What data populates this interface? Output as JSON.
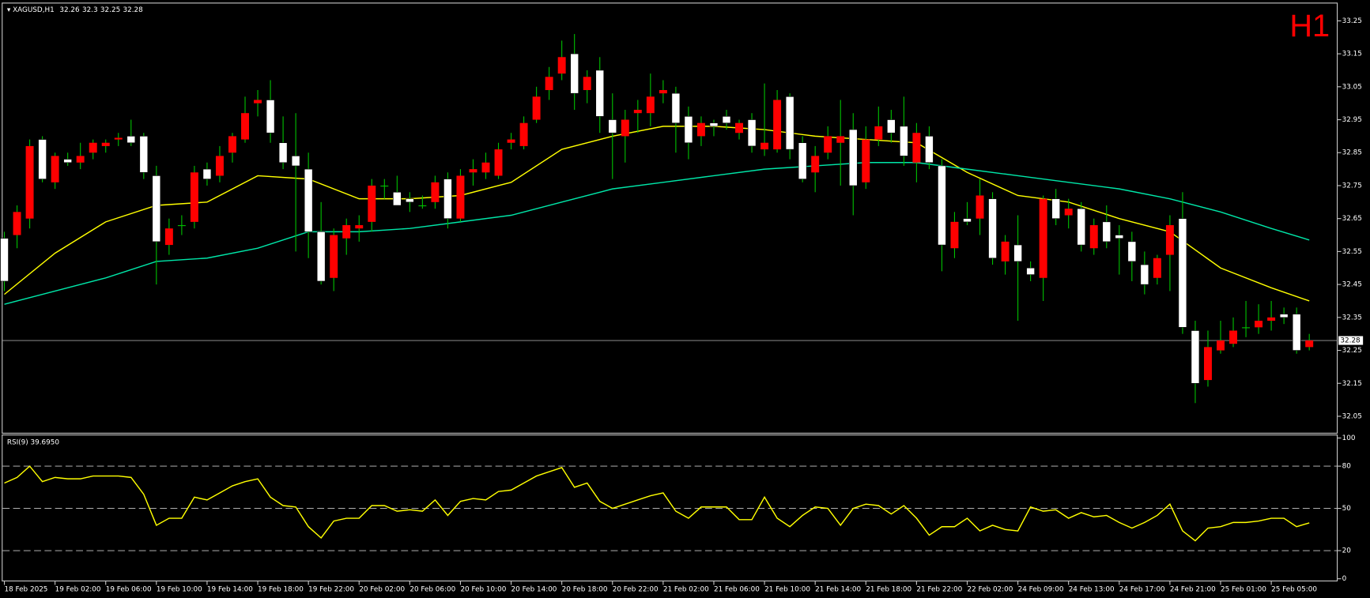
{
  "chart_data": [
    {
      "type": "candlestick",
      "symbol_label": "XAGUSD,H1",
      "timeframe": "H1",
      "rising_color": "#ff0000",
      "falling_color": "#ffffff",
      "wick_color": "#00c000",
      "bid_line_color": "#a0a0a0",
      "open": [
        32.59,
        32.6,
        32.65,
        32.89,
        32.76,
        32.83,
        32.82,
        32.85,
        32.87,
        32.89,
        32.9,
        32.9,
        32.78,
        32.57,
        32.63,
        32.64,
        32.8,
        32.78,
        32.85,
        32.89,
        33.0,
        33.01,
        32.88,
        32.84,
        32.8,
        32.61,
        32.47,
        32.59,
        32.62,
        32.64,
        32.75,
        32.73,
        32.71,
        32.69,
        32.7,
        32.77,
        32.65,
        32.79,
        32.79,
        32.78,
        32.88,
        32.87,
        32.95,
        33.04,
        33.09,
        33.15,
        33.04,
        33.1,
        32.95,
        32.9,
        32.97,
        32.97,
        33.03,
        33.03,
        32.96,
        32.9,
        32.94,
        32.96,
        32.91,
        32.95,
        32.86,
        32.86,
        33.02,
        32.88,
        32.79,
        32.85,
        32.88,
        32.92,
        32.76,
        32.89,
        32.95,
        32.93,
        32.82,
        32.9,
        32.81,
        32.56,
        32.65,
        32.65,
        32.71,
        32.52,
        32.57,
        32.5,
        32.47,
        32.71,
        32.66,
        32.68,
        32.56,
        32.64,
        32.6,
        32.58,
        32.51,
        32.47,
        32.54,
        32.65,
        32.31,
        32.16,
        32.25,
        32.27,
        32.32,
        32.32,
        32.34,
        32.36,
        32.36,
        32.26
      ],
      "high": [
        32.61,
        32.69,
        32.89,
        32.9,
        32.85,
        32.85,
        32.88,
        32.89,
        32.89,
        32.91,
        32.95,
        32.91,
        32.81,
        32.65,
        32.66,
        32.81,
        32.82,
        32.87,
        32.91,
        33.02,
        33.04,
        33.07,
        32.96,
        32.97,
        32.85,
        32.7,
        32.62,
        32.65,
        32.66,
        32.77,
        32.77,
        32.78,
        32.73,
        32.72,
        32.78,
        32.79,
        32.8,
        32.83,
        32.85,
        32.88,
        32.91,
        32.96,
        33.05,
        33.11,
        33.19,
        33.21,
        33.1,
        33.14,
        33.03,
        32.98,
        33.01,
        33.09,
        33.07,
        33.05,
        32.99,
        32.96,
        32.95,
        32.98,
        32.95,
        32.97,
        33.06,
        33.04,
        33.03,
        32.9,
        32.87,
        32.93,
        33.01,
        32.97,
        32.93,
        32.99,
        32.98,
        33.02,
        32.94,
        32.93,
        32.83,
        32.67,
        32.7,
        32.77,
        32.73,
        32.6,
        32.66,
        32.52,
        32.72,
        32.74,
        32.71,
        32.7,
        32.65,
        32.69,
        32.63,
        32.61,
        32.55,
        32.54,
        32.66,
        32.73,
        32.34,
        32.31,
        32.34,
        32.35,
        32.4,
        32.39,
        32.4,
        32.38,
        32.38,
        32.3
      ],
      "low": [
        32.43,
        32.56,
        32.62,
        32.76,
        32.74,
        32.81,
        32.8,
        32.83,
        32.85,
        32.87,
        32.87,
        32.77,
        32.45,
        32.54,
        32.6,
        32.62,
        32.75,
        32.76,
        32.82,
        32.88,
        32.96,
        32.88,
        32.8,
        32.55,
        32.53,
        32.45,
        32.43,
        32.54,
        32.58,
        32.61,
        32.71,
        32.69,
        32.67,
        32.68,
        32.68,
        32.62,
        32.64,
        32.75,
        32.77,
        32.77,
        32.86,
        32.86,
        32.94,
        33.01,
        33.07,
        32.98,
        33.0,
        32.91,
        32.77,
        32.82,
        32.91,
        32.93,
        33.0,
        32.85,
        32.83,
        32.87,
        32.9,
        32.92,
        32.89,
        32.85,
        32.84,
        32.85,
        32.83,
        32.76,
        32.73,
        32.83,
        32.75,
        32.66,
        32.74,
        32.87,
        32.88,
        32.81,
        32.76,
        32.8,
        32.49,
        32.53,
        32.63,
        32.6,
        32.51,
        32.48,
        32.34,
        32.46,
        32.4,
        32.63,
        32.62,
        32.55,
        32.54,
        32.56,
        32.48,
        32.46,
        32.42,
        32.45,
        32.43,
        32.3,
        32.09,
        32.14,
        32.24,
        32.26,
        32.29,
        32.3,
        32.31,
        32.33,
        32.24,
        32.25
      ],
      "close": [
        32.46,
        32.67,
        32.87,
        32.77,
        32.84,
        32.82,
        32.84,
        32.88,
        32.88,
        32.895,
        32.88,
        32.79,
        32.58,
        32.62,
        32.63,
        32.79,
        32.77,
        32.84,
        32.9,
        32.97,
        33.01,
        32.91,
        32.82,
        32.81,
        32.61,
        32.46,
        32.6,
        32.63,
        32.63,
        32.75,
        32.75,
        32.69,
        32.7,
        32.69,
        32.76,
        32.65,
        32.78,
        32.8,
        32.82,
        32.86,
        32.89,
        32.94,
        33.02,
        33.08,
        33.14,
        33.03,
        33.08,
        32.96,
        32.91,
        32.95,
        32.98,
        33.02,
        33.04,
        32.94,
        32.88,
        32.94,
        32.93,
        32.94,
        32.94,
        32.87,
        32.88,
        33.01,
        32.86,
        32.77,
        32.84,
        32.9,
        32.9,
        32.75,
        32.89,
        32.93,
        32.91,
        32.84,
        32.91,
        32.82,
        32.57,
        32.64,
        32.64,
        32.72,
        32.53,
        32.58,
        32.52,
        32.48,
        32.71,
        32.65,
        32.68,
        32.57,
        32.63,
        32.58,
        32.59,
        32.52,
        32.45,
        32.53,
        32.63,
        32.32,
        32.15,
        32.26,
        32.28,
        32.31,
        32.32,
        32.34,
        32.35,
        32.35,
        32.25,
        32.28
      ],
      "lines": [
        {
          "color": "#ffff00",
          "x": [
            0,
            4,
            8,
            12,
            16,
            20,
            24,
            28,
            32,
            36,
            40,
            44,
            48,
            52,
            56,
            60,
            64,
            68,
            72,
            76,
            80,
            84,
            88,
            92,
            96,
            100,
            103
          ],
          "values": [
            32.42,
            32.545,
            32.64,
            32.69,
            32.7,
            32.78,
            32.77,
            32.71,
            32.71,
            32.72,
            32.76,
            32.86,
            32.9,
            32.93,
            32.93,
            32.92,
            32.9,
            32.89,
            32.88,
            32.79,
            32.72,
            32.7,
            32.65,
            32.61,
            32.5,
            32.44,
            32.4
          ]
        },
        {
          "color": "#00e6a8",
          "x": [
            0,
            4,
            8,
            12,
            16,
            20,
            24,
            28,
            32,
            36,
            40,
            44,
            48,
            52,
            56,
            60,
            64,
            68,
            72,
            76,
            80,
            84,
            88,
            92,
            96,
            100,
            103
          ],
          "values": [
            32.39,
            32.43,
            32.47,
            32.52,
            32.53,
            32.56,
            32.61,
            32.61,
            32.62,
            32.64,
            32.66,
            32.7,
            32.74,
            32.76,
            32.78,
            32.8,
            32.81,
            32.82,
            32.82,
            32.8,
            32.78,
            32.76,
            32.74,
            32.71,
            32.67,
            32.62,
            32.585
          ]
        }
      ],
      "ylim": [
        32.0,
        33.3
      ],
      "yticks": [
        32.05,
        32.15,
        32.25,
        32.35,
        32.45,
        32.55,
        32.65,
        32.75,
        32.85,
        32.95,
        33.05,
        33.15,
        33.25
      ],
      "xticks": [
        {
          "value": 0,
          "label": "18 Feb 2025"
        },
        {
          "value": 4,
          "label": "19 Feb 02:00"
        },
        {
          "value": 8,
          "label": "19 Feb 06:00"
        },
        {
          "value": 12,
          "label": "19 Feb 10:00"
        },
        {
          "value": 16,
          "label": "19 Feb 14:00"
        },
        {
          "value": 20,
          "label": "19 Feb 18:00"
        },
        {
          "value": 24,
          "label": "19 Feb 22:00"
        },
        {
          "value": 28,
          "label": "20 Feb 02:00"
        },
        {
          "value": 32,
          "label": "20 Feb 06:00"
        },
        {
          "value": 36,
          "label": "20 Feb 10:00"
        },
        {
          "value": 40,
          "label": "20 Feb 14:00"
        },
        {
          "value": 44,
          "label": "20 Feb 18:00"
        },
        {
          "value": 48,
          "label": "20 Feb 22:00"
        },
        {
          "value": 52,
          "label": "21 Feb 02:00"
        },
        {
          "value": 56,
          "label": "21 Feb 06:00"
        },
        {
          "value": 60,
          "label": "21 Feb 10:00"
        },
        {
          "value": 64,
          "label": "21 Feb 14:00"
        },
        {
          "value": 68,
          "label": "21 Feb 18:00"
        },
        {
          "value": 72,
          "label": "21 Feb 22:00"
        },
        {
          "value": 76,
          "label": "22 Feb 02:00"
        },
        {
          "value": 80,
          "label": "24 Feb 09:00"
        },
        {
          "value": 84,
          "label": "24 Feb 13:00"
        },
        {
          "value": 88,
          "label": "24 Feb 17:00"
        },
        {
          "value": 92,
          "label": "24 Feb 21:00"
        },
        {
          "value": 96,
          "label": "25 Feb 01:00"
        },
        {
          "value": 100,
          "label": "25 Feb 05:00"
        }
      ]
    },
    {
      "type": "line",
      "title": "RSI(9) 39.6950",
      "color": "#ffff00",
      "values": [
        68,
        72,
        80,
        69,
        72,
        71,
        71,
        73,
        73,
        73,
        72,
        60,
        38,
        43,
        43,
        58,
        56,
        61,
        66,
        69,
        71,
        58,
        52,
        51,
        37,
        29,
        41,
        43,
        43,
        52,
        52,
        48,
        49,
        48,
        56,
        45,
        55,
        57,
        56,
        62,
        63,
        68,
        73,
        76,
        79,
        65,
        68,
        55,
        50,
        53,
        56,
        59,
        61,
        48,
        43,
        51,
        51,
        51,
        42,
        42,
        58,
        43,
        37,
        45,
        51,
        50,
        38,
        50,
        53,
        52,
        46,
        52,
        43,
        31,
        37,
        37,
        43,
        34,
        38,
        35,
        34,
        51,
        48,
        49,
        43,
        47,
        44,
        45,
        40,
        36,
        40,
        45,
        53,
        34,
        27,
        36,
        37,
        40,
        40,
        41,
        43,
        43,
        37,
        39.695
      ],
      "ylim": [
        0,
        100
      ],
      "yticks": [
        0,
        20,
        50,
        80,
        100
      ]
    }
  ]
}
